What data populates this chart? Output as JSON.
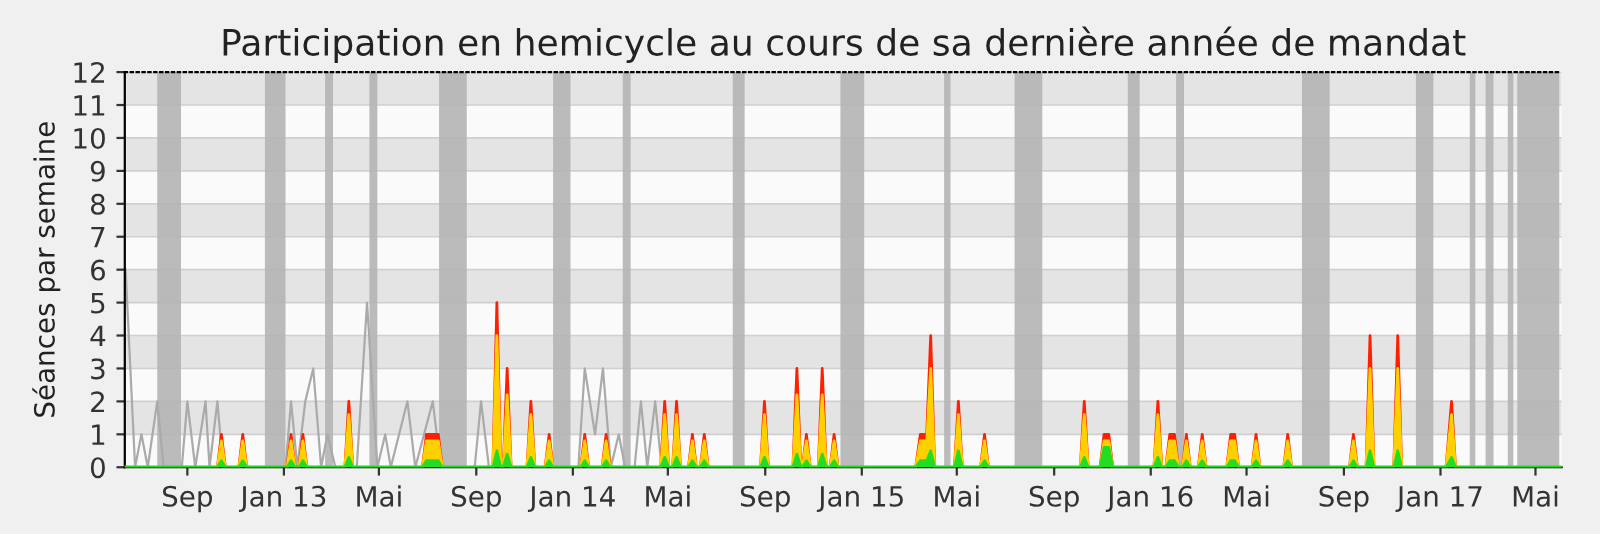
{
  "chart_data": {
    "type": "area",
    "title": "Participation en hemicycle au cours de sa dernière année de mandat",
    "ylabel": "Séances par semaine",
    "xlim": [
      "2012-06-14",
      "2017-06-03"
    ],
    "ylim": [
      0,
      12
    ],
    "yticks": [
      0,
      1,
      2,
      3,
      4,
      5,
      6,
      7,
      8,
      9,
      10,
      11,
      12
    ],
    "xticks": [
      {
        "value": "2012-09-01",
        "label": "Sep"
      },
      {
        "value": "2013-01-01",
        "label": "Jan 13"
      },
      {
        "value": "2013-05-01",
        "label": "Mai"
      },
      {
        "value": "2013-09-01",
        "label": "Sep"
      },
      {
        "value": "2014-01-01",
        "label": "Jan 14"
      },
      {
        "value": "2014-05-01",
        "label": "Mai"
      },
      {
        "value": "2014-09-01",
        "label": "Sep"
      },
      {
        "value": "2015-01-01",
        "label": "Jan 15"
      },
      {
        "value": "2015-05-01",
        "label": "Mai"
      },
      {
        "value": "2015-09-01",
        "label": "Sep"
      },
      {
        "value": "2016-01-01",
        "label": "Jan 16"
      },
      {
        "value": "2016-05-01",
        "label": "Mai"
      },
      {
        "value": "2016-09-01",
        "label": "Sep"
      },
      {
        "value": "2017-01-01",
        "label": "Jan 17"
      },
      {
        "value": "2017-05-01",
        "label": "Mai"
      }
    ],
    "grid": "y",
    "legend": false,
    "bands": [
      {
        "axis": "x",
        "from": "2012-07-25",
        "to": "2012-08-24",
        "color": "#b4b4b4"
      },
      {
        "axis": "x",
        "from": "2012-12-08",
        "to": "2013-01-03",
        "color": "#b4b4b4"
      },
      {
        "axis": "x",
        "from": "2013-02-22",
        "to": "2013-03-04",
        "color": "#b4b4b4"
      },
      {
        "axis": "x",
        "from": "2013-04-19",
        "to": "2013-04-29",
        "color": "#b4b4b4"
      },
      {
        "axis": "x",
        "from": "2013-07-16",
        "to": "2013-08-20",
        "color": "#b4b4b4"
      },
      {
        "axis": "x",
        "from": "2013-12-07",
        "to": "2013-12-29",
        "color": "#b4b4b4"
      },
      {
        "axis": "x",
        "from": "2014-03-05",
        "to": "2014-03-15",
        "color": "#b4b4b4"
      },
      {
        "axis": "x",
        "from": "2014-07-22",
        "to": "2014-08-06",
        "color": "#b4b4b4"
      },
      {
        "axis": "x",
        "from": "2014-12-05",
        "to": "2015-01-04",
        "color": "#b4b4b4"
      },
      {
        "axis": "x",
        "from": "2015-04-15",
        "to": "2015-04-23",
        "color": "#b4b4b4"
      },
      {
        "axis": "x",
        "from": "2015-07-13",
        "to": "2015-08-17",
        "color": "#b4b4b4"
      },
      {
        "axis": "x",
        "from": "2015-12-03",
        "to": "2015-12-18",
        "color": "#b4b4b4"
      },
      {
        "axis": "x",
        "from": "2016-02-02",
        "to": "2016-02-12",
        "color": "#b4b4b4"
      },
      {
        "axis": "x",
        "from": "2016-07-10",
        "to": "2016-08-14",
        "color": "#b4b4b4"
      },
      {
        "axis": "x",
        "from": "2016-12-01",
        "to": "2016-12-23",
        "color": "#b4b4b4"
      },
      {
        "axis": "x",
        "from": "2017-02-07",
        "to": "2017-02-14",
        "color": "#b4b4b4"
      },
      {
        "axis": "x",
        "from": "2017-02-27",
        "to": "2017-03-09",
        "color": "#b4b4b4"
      },
      {
        "axis": "x",
        "from": "2017-03-27",
        "to": "2017-04-03",
        "color": "#b4b4b4"
      },
      {
        "axis": "x",
        "from": "2017-04-08",
        "to": "2017-05-31",
        "color": "#b4b4b4"
      }
    ],
    "x": [
      "2012-06-14",
      "2012-10-09",
      "2012-10-14",
      "2012-10-19",
      "2012-11-05",
      "2012-11-10",
      "2012-11-15",
      "2013-01-05",
      "2013-01-10",
      "2013-01-15",
      "2013-01-20",
      "2013-01-25",
      "2013-01-30",
      "2013-03-19",
      "2013-03-24",
      "2013-03-29",
      "2013-06-25",
      "2013-06-30",
      "2013-07-15",
      "2013-07-20",
      "2013-09-22",
      "2013-09-27",
      "2013-10-02",
      "2013-10-05",
      "2013-10-10",
      "2013-10-15",
      "2013-11-04",
      "2013-11-09",
      "2013-11-14",
      "2013-11-27",
      "2013-12-02",
      "2013-12-07",
      "2014-01-11",
      "2014-01-16",
      "2014-01-21",
      "2014-02-07",
      "2014-02-12",
      "2014-02-17",
      "2014-04-22",
      "2014-04-27",
      "2014-05-02",
      "2014-05-07",
      "2014-05-12",
      "2014-05-17",
      "2014-05-27",
      "2014-06-01",
      "2014-06-06",
      "2014-06-11",
      "2014-06-16",
      "2014-06-21",
      "2014-08-26",
      "2014-08-31",
      "2014-09-05",
      "2014-10-06",
      "2014-10-11",
      "2014-10-16",
      "2014-10-18",
      "2014-10-23",
      "2014-10-28",
      "2014-11-07",
      "2014-11-12",
      "2014-11-17",
      "2014-11-22",
      "2014-11-27",
      "2014-12-02",
      "2015-03-10",
      "2015-03-16",
      "2015-03-24",
      "2015-03-29",
      "2015-04-03",
      "2015-04-28",
      "2015-05-03",
      "2015-05-08",
      "2015-05-31",
      "2015-06-05",
      "2015-06-10",
      "2015-10-04",
      "2015-10-09",
      "2015-10-14",
      "2015-10-29",
      "2015-11-03",
      "2015-11-09",
      "2015-11-14",
      "2016-01-05",
      "2016-01-10",
      "2016-01-15",
      "2016-01-20",
      "2016-01-25",
      "2016-01-31",
      "2016-02-05",
      "2016-02-10",
      "2016-02-15",
      "2016-02-20",
      "2016-03-01",
      "2016-03-06",
      "2016-03-11",
      "2016-04-06",
      "2016-04-11",
      "2016-04-16",
      "2016-04-21",
      "2016-05-08",
      "2016-05-13",
      "2016-05-18",
      "2016-06-17",
      "2016-06-22",
      "2016-06-27",
      "2016-09-08",
      "2016-09-13",
      "2016-09-18",
      "2016-09-29",
      "2016-10-04",
      "2016-10-09",
      "2016-11-03",
      "2016-11-08",
      "2016-11-13",
      "2017-01-08",
      "2017-01-15",
      "2017-01-20",
      "2017-06-03"
    ],
    "series": [
      {
        "type": "line",
        "color": "#aaaaaa",
        "x": [
          "2012-06-15",
          "2012-06-27",
          "2012-07-05",
          "2012-07-13",
          "2012-07-25",
          "2012-08-02",
          "2012-08-25",
          "2012-09-01",
          "2012-09-11",
          "2012-09-24",
          "2012-09-29",
          "2012-10-09",
          "2012-10-16",
          "2013-01-03",
          "2013-01-10",
          "2013-01-18",
          "2013-01-28",
          "2013-02-07",
          "2013-02-17",
          "2013-02-25",
          "2013-03-07",
          "2013-04-03",
          "2013-04-16",
          "2013-04-29",
          "2013-05-09",
          "2013-05-16",
          "2013-06-06",
          "2013-06-16",
          "2013-07-08",
          "2013-07-18",
          "2013-08-30",
          "2013-09-07",
          "2013-09-17",
          "2014-01-08",
          "2014-01-16",
          "2014-01-29",
          "2014-02-08",
          "2014-02-18",
          "2014-02-28",
          "2014-03-08",
          "2014-03-20",
          "2014-03-28",
          "2014-04-05",
          "2014-04-15",
          "2014-04-23"
        ],
        "values": [
          6,
          0,
          1,
          0,
          2,
          0,
          0,
          2,
          0,
          2,
          0,
          2,
          0,
          0,
          2,
          0,
          2,
          3,
          0,
          1,
          0,
          0,
          5,
          0,
          1,
          0,
          2,
          0,
          2,
          0,
          0,
          2,
          0,
          0,
          3,
          1,
          3,
          0,
          1,
          0,
          0,
          2,
          0,
          2,
          0
        ]
      },
      {
        "color": "#ff2000",
        "values": [
          0,
          0,
          1,
          0,
          0,
          1,
          0,
          0,
          1,
          0,
          0,
          1,
          0,
          0,
          2,
          0,
          0,
          1,
          1,
          0,
          0,
          5,
          0,
          0,
          3,
          0,
          0,
          2,
          0,
          0,
          1,
          0,
          0,
          1,
          0,
          0,
          1,
          0,
          0,
          2,
          0,
          0,
          2,
          0,
          0,
          1,
          0,
          0,
          1,
          0,
          0,
          2,
          0,
          0,
          3,
          0,
          0,
          1,
          0,
          0,
          3,
          0,
          0,
          1,
          0,
          0,
          1,
          1,
          4,
          0,
          0,
          2,
          0,
          0,
          1,
          0,
          0,
          2,
          0,
          0,
          1,
          1,
          0,
          0,
          2,
          0,
          0,
          1,
          1,
          0,
          0,
          1,
          0,
          0,
          1,
          0,
          0,
          1,
          1,
          0,
          0,
          1,
          0,
          0,
          1,
          0,
          0,
          1,
          0,
          0,
          4,
          0,
          0,
          4,
          0,
          0,
          2,
          0,
          0
        ]
      },
      {
        "color": "#ffd000",
        "values": [
          0,
          0,
          0.8,
          0,
          0,
          0.8,
          0,
          0,
          0.8,
          0,
          0,
          0.8,
          0,
          0,
          1.6,
          0,
          0,
          0.8,
          0.8,
          0,
          0,
          4,
          0,
          0,
          2.2,
          0,
          0,
          1.6,
          0,
          0,
          0.8,
          0,
          0,
          0.8,
          0,
          0,
          0.8,
          0,
          0,
          1.6,
          0,
          0,
          1.6,
          0,
          0,
          0.8,
          0,
          0,
          0.8,
          0,
          0,
          1.6,
          0,
          0,
          2.2,
          0,
          0,
          0.8,
          0,
          0,
          2.2,
          0,
          0,
          0.8,
          0,
          0,
          0.8,
          0.8,
          3,
          0,
          0,
          1.6,
          0,
          0,
          0.8,
          0,
          0,
          1.6,
          0,
          0,
          0.8,
          0.8,
          0,
          0,
          1.6,
          0,
          0,
          0.8,
          0.8,
          0,
          0,
          0.8,
          0,
          0,
          0.8,
          0,
          0,
          0.8,
          0.8,
          0,
          0,
          0.8,
          0,
          0,
          0.8,
          0,
          0,
          0.8,
          0,
          0,
          3,
          0,
          0,
          3,
          0,
          0,
          1.6,
          0,
          0
        ]
      },
      {
        "color": "#22dd22",
        "values": [
          0,
          0,
          0.2,
          0,
          0,
          0.2,
          0,
          0,
          0.2,
          0,
          0,
          0.2,
          0,
          0,
          0.3,
          0,
          0,
          0.2,
          0.2,
          0,
          0,
          0.5,
          0,
          0,
          0.4,
          0,
          0,
          0.3,
          0,
          0,
          0.2,
          0,
          0,
          0.2,
          0,
          0,
          0.2,
          0,
          0,
          0.3,
          0,
          0,
          0.3,
          0,
          0,
          0.2,
          0,
          0,
          0.2,
          0,
          0,
          0.3,
          0,
          0,
          0.4,
          0,
          0,
          0.2,
          0,
          0,
          0.4,
          0,
          0,
          0.2,
          0,
          0,
          0.2,
          0.2,
          0.5,
          0,
          0,
          0.5,
          0,
          0,
          0.2,
          0,
          0,
          0.3,
          0,
          0,
          0.6,
          0.6,
          0,
          0,
          0.3,
          0,
          0,
          0.2,
          0.2,
          0,
          0,
          0.2,
          0,
          0,
          0.2,
          0,
          0,
          0.2,
          0.2,
          0,
          0,
          0.2,
          0,
          0,
          0.2,
          0,
          0,
          0.2,
          0,
          0,
          0.5,
          0,
          0,
          0.5,
          0,
          0,
          0.3,
          0,
          0
        ]
      }
    ]
  }
}
